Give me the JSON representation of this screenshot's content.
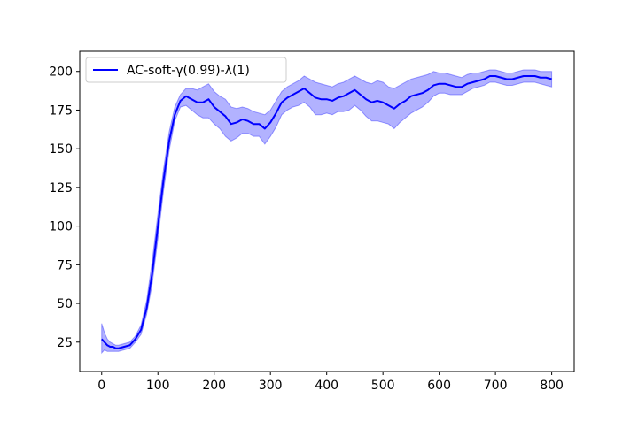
{
  "colors": {
    "line": "#0000ff",
    "band": "#0000ff",
    "axis": "#000000",
    "legend_border": "#cccccc",
    "background": "#ffffff"
  },
  "chart_data": {
    "type": "line",
    "title": "",
    "xlabel": "",
    "ylabel": "",
    "xlim": [
      -39,
      840
    ],
    "ylim": [
      6,
      213
    ],
    "grid": false,
    "legend_position": "top-left",
    "xticks": [
      0,
      100,
      200,
      300,
      400,
      500,
      600,
      700,
      800
    ],
    "yticks": [
      25,
      50,
      75,
      100,
      125,
      150,
      175,
      200
    ],
    "series": [
      {
        "name": "AC-soft-γ(0.99)-λ(1)",
        "x": [
          0,
          5,
          10,
          15,
          20,
          25,
          30,
          40,
          50,
          60,
          70,
          80,
          90,
          100,
          110,
          120,
          130,
          140,
          150,
          160,
          170,
          180,
          190,
          200,
          210,
          220,
          230,
          240,
          250,
          260,
          270,
          280,
          290,
          300,
          310,
          320,
          330,
          340,
          350,
          360,
          370,
          380,
          390,
          400,
          410,
          420,
          430,
          440,
          450,
          460,
          470,
          480,
          490,
          500,
          510,
          520,
          530,
          540,
          550,
          560,
          570,
          580,
          590,
          600,
          610,
          620,
          630,
          640,
          650,
          660,
          670,
          680,
          690,
          700,
          710,
          720,
          730,
          740,
          750,
          760,
          770,
          780,
          790,
          800
        ],
        "mean": [
          27,
          25,
          23,
          22,
          22,
          21,
          21,
          22,
          23,
          27,
          33,
          47,
          70,
          100,
          130,
          155,
          172,
          181,
          184,
          182,
          180,
          180,
          182,
          177,
          174,
          171,
          166,
          167,
          169,
          168,
          166,
          166,
          163,
          167,
          173,
          180,
          183,
          185,
          187,
          189,
          186,
          183,
          182,
          182,
          181,
          183,
          184,
          186,
          188,
          185,
          182,
          180,
          181,
          180,
          178,
          176,
          179,
          181,
          184,
          185,
          186,
          188,
          191,
          192,
          192,
          191,
          190,
          190,
          192,
          193,
          194,
          195,
          197,
          197,
          196,
          195,
          195,
          196,
          197,
          197,
          197,
          196,
          196,
          195
        ],
        "lower": [
          18,
          20,
          19,
          19,
          19,
          19,
          19,
          20,
          21,
          25,
          30,
          43,
          63,
          92,
          123,
          149,
          168,
          177,
          178,
          175,
          172,
          170,
          170,
          166,
          163,
          158,
          155,
          157,
          160,
          160,
          158,
          158,
          153,
          158,
          164,
          172,
          175,
          177,
          178,
          180,
          177,
          172,
          172,
          173,
          172,
          174,
          174,
          175,
          178,
          175,
          171,
          168,
          168,
          167,
          166,
          163,
          167,
          170,
          173,
          175,
          177,
          180,
          184,
          186,
          186,
          185,
          185,
          185,
          187,
          189,
          190,
          191,
          193,
          193,
          192,
          191,
          191,
          192,
          193,
          193,
          193,
          192,
          191,
          190
        ],
        "upper": [
          37,
          31,
          27,
          25,
          24,
          23,
          23,
          24,
          25,
          29,
          36,
          52,
          78,
          108,
          137,
          161,
          177,
          185,
          189,
          189,
          188,
          190,
          192,
          187,
          184,
          182,
          177,
          176,
          177,
          176,
          174,
          173,
          172,
          175,
          181,
          187,
          190,
          192,
          194,
          197,
          195,
          193,
          192,
          191,
          190,
          192,
          193,
          195,
          197,
          195,
          193,
          192,
          194,
          193,
          190,
          189,
          191,
          193,
          195,
          196,
          197,
          198,
          200,
          199,
          199,
          198,
          197,
          196,
          198,
          199,
          199,
          200,
          201,
          201,
          200,
          199,
          199,
          200,
          201,
          201,
          201,
          200,
          200,
          200
        ]
      }
    ]
  }
}
